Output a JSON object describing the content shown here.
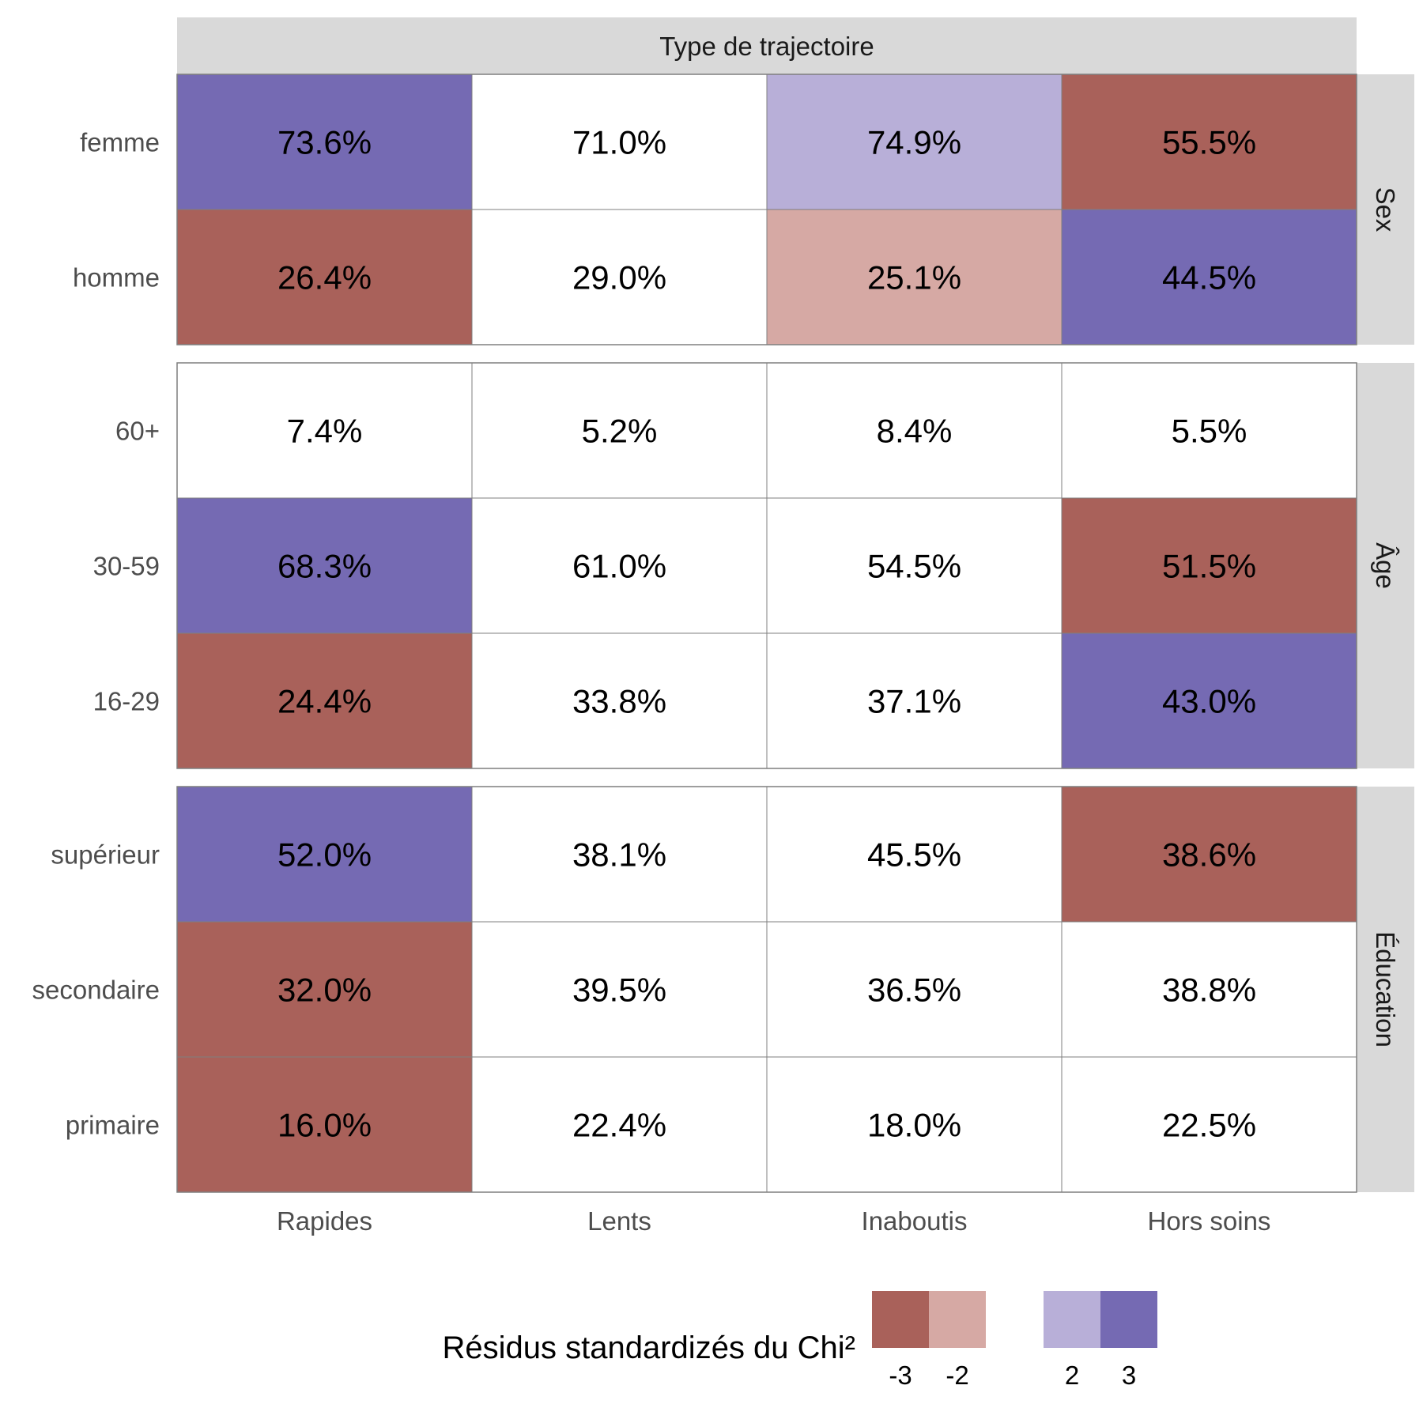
{
  "chart_data": {
    "type": "heatmap",
    "title": "",
    "column_strip": "Type de trajectoire",
    "columns": [
      "Rapides",
      "Lents",
      "Inaboutis",
      "Hors soins"
    ],
    "panels": [
      {
        "name": "Sex",
        "rows": [
          {
            "label": "femme",
            "values": [
              "73.6%",
              "71.0%",
              "74.9%",
              "55.5%"
            ],
            "residual_class": [
              3,
              0,
              2,
              -3
            ]
          },
          {
            "label": "homme",
            "values": [
              "26.4%",
              "29.0%",
              "25.1%",
              "44.5%"
            ],
            "residual_class": [
              -3,
              0,
              -2,
              3
            ]
          }
        ]
      },
      {
        "name": "Âge",
        "rows": [
          {
            "label": "60+",
            "values": [
              "7.4%",
              "5.2%",
              "8.4%",
              "5.5%"
            ],
            "residual_class": [
              0,
              0,
              0,
              0
            ]
          },
          {
            "label": "30-59",
            "values": [
              "68.3%",
              "61.0%",
              "54.5%",
              "51.5%"
            ],
            "residual_class": [
              3,
              0,
              0,
              -3
            ]
          },
          {
            "label": "16-29",
            "values": [
              "24.4%",
              "33.8%",
              "37.1%",
              "43.0%"
            ],
            "residual_class": [
              -3,
              0,
              0,
              3
            ]
          }
        ]
      },
      {
        "name": "Éducation",
        "rows": [
          {
            "label": "supérieur",
            "values": [
              "52.0%",
              "38.1%",
              "45.5%",
              "38.6%"
            ],
            "residual_class": [
              3,
              0,
              0,
              -3
            ]
          },
          {
            "label": "secondaire",
            "values": [
              "32.0%",
              "39.5%",
              "36.5%",
              "38.8%"
            ],
            "residual_class": [
              -3,
              0,
              0,
              0
            ]
          },
          {
            "label": "primaire",
            "values": [
              "16.0%",
              "22.4%",
              "18.0%",
              "22.5%"
            ],
            "residual_class": [
              -3,
              0,
              0,
              0
            ]
          }
        ]
      }
    ],
    "legend": {
      "title": "Résidus standardizés du Chi²",
      "keys": [
        {
          "label": "-3",
          "color": "#A9615A"
        },
        {
          "label": "-2",
          "color": "#D6A9A4"
        },
        {
          "label": "2",
          "color": "#B8AFD8"
        },
        {
          "label": "3",
          "color": "#756AB3"
        }
      ],
      "neutral_color": "#FFFFFF"
    },
    "colors": {
      "strip_bg": "#D9D9D9",
      "grid": "#7F7F7F"
    }
  }
}
